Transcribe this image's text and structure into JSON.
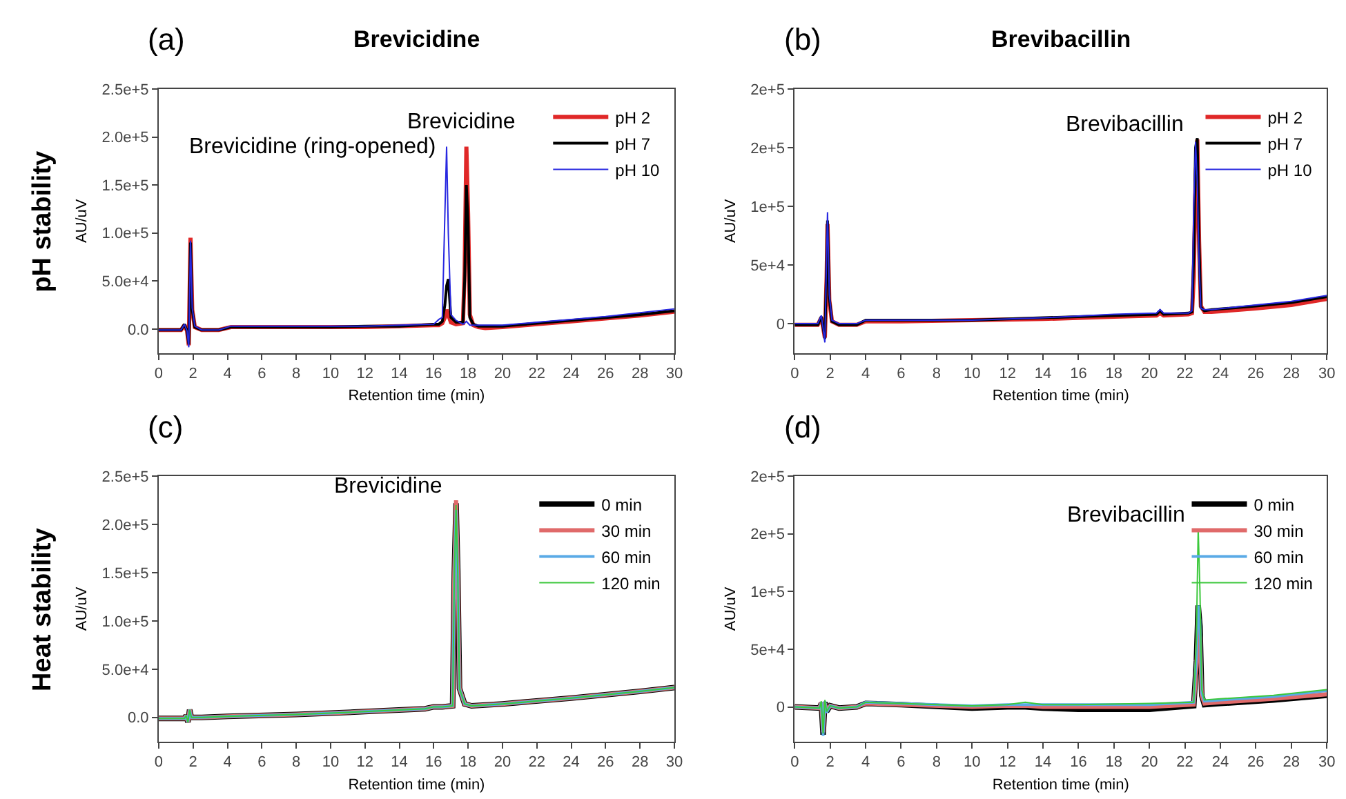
{
  "chart_data": [
    {
      "type": "line",
      "title": "Brevicidine",
      "xlabel": "Retention time (min)",
      "ylabel": "AU/uV",
      "xlim": [
        0,
        30
      ],
      "xticks": [
        0,
        2,
        4,
        6,
        8,
        10,
        12,
        14,
        16,
        18,
        20,
        22,
        24,
        26,
        28,
        30
      ],
      "ylim": [
        -25000,
        250000
      ],
      "yticks": [
        {
          "value": 0,
          "label": "0.0"
        },
        {
          "value": 50000,
          "label": "5.0e+4"
        },
        {
          "value": 100000,
          "label": "1.0e+5"
        },
        {
          "value": 150000,
          "label": "1.5e+5"
        },
        {
          "value": 200000,
          "label": "2.0e+5"
        },
        {
          "value": 250000,
          "label": "2.5e+5"
        }
      ],
      "legend": "top right",
      "annotations": [
        "(a)",
        "pH stability",
        {
          "text": "Brevicidine (ring-opened)",
          "x": 16.75,
          "y": 190000
        },
        {
          "text": "Brevicidine",
          "x": 17.9,
          "y": 190000
        }
      ],
      "series": [
        {
          "name": "pH 2",
          "color": "#e02828",
          "x": [
            0,
            1.3,
            1.5,
            1.65,
            1.75,
            1.85,
            1.95,
            2.1,
            2.5,
            3.5,
            4.2,
            6,
            8,
            10,
            12,
            14,
            16,
            16.3,
            16.5,
            16.65,
            16.75,
            16.85,
            17,
            17.3,
            17.7,
            17.8,
            17.9,
            18.0,
            18.1,
            18.3,
            18.6,
            19,
            20,
            22,
            24,
            26,
            28,
            30
          ],
          "values": [
            -1000,
            -1000,
            4000,
            -2000,
            -17000,
            95000,
            20000,
            2000,
            -1000,
            -1000,
            2000,
            2000,
            2000,
            2000,
            2000,
            3000,
            4000,
            4000,
            6000,
            12000,
            20000,
            15000,
            7000,
            5000,
            6000,
            60000,
            190000,
            120000,
            15000,
            4000,
            2000,
            1000,
            2000,
            5000,
            8000,
            11000,
            14000,
            18000
          ]
        },
        {
          "name": "pH 7",
          "color": "#000000",
          "x": [
            0,
            1.3,
            1.5,
            1.65,
            1.75,
            1.85,
            1.95,
            2.1,
            2.5,
            3.5,
            4.2,
            6,
            8,
            10,
            12,
            14,
            16,
            16.3,
            16.5,
            16.65,
            16.75,
            16.85,
            17,
            17.3,
            17.7,
            17.8,
            17.9,
            18.0,
            18.1,
            18.3,
            18.6,
            19,
            20,
            22,
            24,
            26,
            28,
            30
          ],
          "values": [
            -1000,
            -1000,
            5000,
            -2000,
            -16000,
            90000,
            20000,
            2000,
            -1000,
            -1000,
            2000,
            2000,
            2000,
            2000,
            3000,
            3000,
            5000,
            5000,
            8000,
            25000,
            45000,
            52000,
            12000,
            7000,
            7000,
            50000,
            150000,
            110000,
            12000,
            5000,
            3000,
            3000,
            3000,
            6000,
            9000,
            12000,
            15000,
            19000
          ]
        },
        {
          "name": "pH 10",
          "color": "#2828e0",
          "x": [
            0,
            1.3,
            1.5,
            1.65,
            1.75,
            1.85,
            1.95,
            2.1,
            2.5,
            3.5,
            4.2,
            6,
            8,
            10,
            12,
            14,
            16,
            16.3,
            16.5,
            16.65,
            16.75,
            16.85,
            17,
            17.3,
            17.7,
            17.8,
            17.9,
            18.0,
            18.1,
            18.3,
            18.6,
            19,
            20,
            22,
            24,
            26,
            28,
            30
          ],
          "values": [
            -1000,
            -1000,
            5000,
            -2000,
            -19000,
            92000,
            22000,
            3000,
            -1000,
            -1000,
            3000,
            3000,
            3000,
            3000,
            3000,
            4000,
            5000,
            10000,
            12000,
            120000,
            190000,
            100000,
            15000,
            9000,
            5000,
            6000,
            8000,
            6000,
            4000,
            4000,
            4000,
            4000,
            4000,
            7000,
            10000,
            13000,
            17000,
            21000
          ]
        }
      ]
    },
    {
      "type": "line",
      "title": "Brevibacillin",
      "xlabel": "Retention time (min)",
      "ylabel": "AU/uV",
      "xlim": [
        0,
        30
      ],
      "xticks": [
        0,
        2,
        4,
        6,
        8,
        10,
        12,
        14,
        16,
        18,
        20,
        22,
        24,
        26,
        28,
        30
      ],
      "ylim": [
        -25000,
        200000
      ],
      "yticks": [
        0,
        {
          "value": 50000,
          "label": "5e+4"
        },
        {
          "value": 100000,
          "label": "1e+5"
        },
        {
          "value": 150000,
          "label": "2e+5"
        },
        {
          "value": 200000,
          "label": "2e+5"
        }
      ],
      "legend": "top right",
      "annotations": [
        "(b)",
        {
          "text": "Brevibacillin",
          "x": 22.65,
          "y": 158000
        }
      ],
      "series": [
        {
          "name": "pH 2",
          "color": "#e02828",
          "x": [
            0,
            1.3,
            1.5,
            1.6,
            1.7,
            1.8,
            1.85,
            1.95,
            2.1,
            2.5,
            3.5,
            4,
            6,
            10,
            14,
            18,
            20.4,
            20.6,
            20.8,
            22.2,
            22.4,
            22.5,
            22.6,
            22.7,
            22.8,
            22.9,
            23.1,
            23.5,
            26,
            28,
            30
          ],
          "values": [
            -1000,
            -1000,
            5000,
            -3000,
            -12000,
            40000,
            85000,
            20000,
            2000,
            -1000,
            -1000,
            2000,
            2000,
            3000,
            4000,
            6000,
            7000,
            9000,
            7000,
            8000,
            9000,
            40000,
            120000,
            157000,
            70000,
            15000,
            10000,
            10000,
            13000,
            16000,
            21000
          ]
        },
        {
          "name": "pH 7",
          "color": "#000000",
          "x": [
            0,
            1.3,
            1.5,
            1.6,
            1.7,
            1.8,
            1.85,
            1.95,
            2.1,
            2.5,
            3.5,
            4,
            6,
            10,
            14,
            18,
            20.4,
            20.6,
            20.8,
            22.2,
            22.4,
            22.5,
            22.6,
            22.7,
            22.8,
            22.9,
            23.1,
            23.5,
            26,
            28,
            30
          ],
          "values": [
            -1000,
            -1000,
            6000,
            -3000,
            -13000,
            50000,
            88000,
            22000,
            2000,
            -1000,
            -1000,
            3000,
            3000,
            3000,
            5000,
            7000,
            8000,
            11000,
            8000,
            9000,
            10000,
            60000,
            150000,
            158000,
            65000,
            14000,
            11000,
            12000,
            15000,
            18000,
            23000
          ]
        },
        {
          "name": "pH 10",
          "color": "#2828e0",
          "x": [
            0,
            1.3,
            1.5,
            1.6,
            1.7,
            1.8,
            1.85,
            1.95,
            2.1,
            2.5,
            3.5,
            4,
            6,
            10,
            14,
            18,
            20.4,
            20.6,
            20.8,
            22.2,
            22.4,
            22.5,
            22.6,
            22.7,
            22.8,
            22.9,
            23.1,
            23.5,
            26,
            28,
            30
          ],
          "values": [
            0,
            0,
            7000,
            -4000,
            -16000,
            60000,
            95000,
            25000,
            3000,
            0,
            0,
            3000,
            3000,
            3000,
            5000,
            8000,
            9000,
            12000,
            9000,
            9000,
            11000,
            100000,
            155000,
            120000,
            50000,
            13000,
            12000,
            12000,
            16000,
            19000,
            24000
          ]
        }
      ]
    },
    {
      "type": "line",
      "xlabel": "Retention time (min)",
      "ylabel": "AU/uV",
      "xlim": [
        0,
        30
      ],
      "xticks": [
        0,
        2,
        4,
        6,
        8,
        10,
        12,
        14,
        16,
        18,
        20,
        22,
        24,
        26,
        28,
        30
      ],
      "ylim": [
        -25000,
        250000
      ],
      "yticks": [
        {
          "value": 0,
          "label": "0.0"
        },
        {
          "value": 50000,
          "label": "5.0e+4"
        },
        {
          "value": 100000,
          "label": "1.0e+5"
        },
        {
          "value": 150000,
          "label": "1.5e+5"
        },
        {
          "value": 200000,
          "label": "2.0e+5"
        },
        {
          "value": 250000,
          "label": "2.5e+5"
        }
      ],
      "legend": "top right",
      "annotations": [
        "(c)",
        "Heat stability",
        {
          "text": "Brevicidine",
          "x": 17.3,
          "y": 225000
        }
      ],
      "series": [
        {
          "name": "0 min",
          "color": "#000000",
          "x": [
            0,
            1.5,
            1.6,
            1.7,
            1.8,
            1.9,
            2.5,
            4,
            8,
            12,
            15.5,
            16,
            16.5,
            17.1,
            17.2,
            17.3,
            17.4,
            17.5,
            17.8,
            18.2,
            20,
            24,
            28,
            30
          ],
          "values": [
            -1000,
            -1000,
            2000,
            -5000,
            8000,
            0,
            0,
            1000,
            3000,
            6000,
            9000,
            11000,
            11000,
            12000,
            150000,
            222000,
            150000,
            30000,
            14000,
            12000,
            14000,
            20000,
            27000,
            31000
          ]
        },
        {
          "name": "30 min",
          "color": "#e06a6a",
          "x": [
            0,
            1.5,
            1.6,
            1.7,
            1.8,
            1.9,
            2.5,
            4,
            8,
            12,
            15.5,
            16,
            16.5,
            17.1,
            17.2,
            17.3,
            17.4,
            17.5,
            17.8,
            18.2,
            20,
            24,
            28,
            30
          ],
          "values": [
            -1000,
            -1000,
            2000,
            -5000,
            8000,
            0,
            0,
            1000,
            3000,
            6000,
            9000,
            11000,
            11000,
            12000,
            150000,
            225000,
            150000,
            30000,
            14000,
            12000,
            14000,
            20000,
            27000,
            31000
          ]
        },
        {
          "name": "60 min",
          "color": "#5aaae6",
          "x": [
            0,
            1.5,
            1.6,
            1.7,
            1.8,
            1.9,
            2.5,
            4,
            8,
            12,
            15.5,
            16,
            16.5,
            17.1,
            17.2,
            17.3,
            17.4,
            17.5,
            17.8,
            18.2,
            20,
            24,
            28,
            30
          ],
          "values": [
            -1000,
            -1000,
            2000,
            -5000,
            8000,
            0,
            0,
            1000,
            3000,
            6000,
            9000,
            11000,
            11000,
            12000,
            140000,
            215000,
            145000,
            30000,
            14000,
            12000,
            14000,
            20000,
            27000,
            31000
          ]
        },
        {
          "name": "120 min",
          "color": "#3cc83c",
          "x": [
            0,
            1.5,
            1.6,
            1.7,
            1.8,
            1.9,
            2.5,
            4,
            8,
            12,
            15.5,
            16,
            16.5,
            17.1,
            17.2,
            17.3,
            17.4,
            17.5,
            17.8,
            18.2,
            20,
            24,
            28,
            30
          ],
          "values": [
            -1000,
            -1000,
            2000,
            -5000,
            8000,
            0,
            0,
            1000,
            3000,
            6000,
            9000,
            11000,
            11000,
            12000,
            145000,
            220000,
            148000,
            30000,
            14000,
            12000,
            14000,
            20000,
            27000,
            31000
          ]
        }
      ]
    },
    {
      "type": "line",
      "xlabel": "Retention time (min)",
      "ylabel": "AU/uV",
      "xlim": [
        0,
        30
      ],
      "xticks": [
        0,
        2,
        4,
        6,
        8,
        10,
        12,
        14,
        16,
        18,
        20,
        22,
        24,
        26,
        28,
        30
      ],
      "ylim": [
        -30000,
        200000
      ],
      "yticks": [
        0,
        {
          "value": 50000,
          "label": "5e+4"
        },
        {
          "value": 100000,
          "label": "1e+5"
        },
        {
          "value": 150000,
          "label": "2e+5"
        },
        {
          "value": 200000,
          "label": "2e+5"
        }
      ],
      "legend": "top right",
      "annotations": [
        "(d)",
        {
          "text": "Brevibacillin",
          "x": 22.75,
          "y": 154000
        }
      ],
      "series": [
        {
          "name": "0 min",
          "color": "#000000",
          "x": [
            0,
            1.4,
            1.5,
            1.6,
            1.7,
            1.8,
            2,
            2.5,
            3.5,
            4,
            6,
            10,
            12,
            13,
            14,
            16,
            20,
            22.5,
            22.65,
            22.75,
            22.85,
            22.95,
            23.1,
            24,
            27,
            30
          ],
          "values": [
            0,
            -1000,
            3000,
            -24000,
            4000,
            -4000,
            1000,
            -1000,
            0,
            3000,
            2000,
            -1000,
            0,
            0,
            -1000,
            -2000,
            -2000,
            1000,
            40000,
            88000,
            70000,
            10000,
            2000,
            3000,
            6000,
            10000
          ]
        },
        {
          "name": "30 min",
          "color": "#e06a6a",
          "x": [
            0,
            1.4,
            1.5,
            1.6,
            1.7,
            1.8,
            2,
            2.5,
            3.5,
            4,
            6,
            10,
            12,
            13,
            14,
            16,
            20,
            22.5,
            22.65,
            22.75,
            22.85,
            22.95,
            23.1,
            24,
            27,
            30
          ],
          "values": [
            0,
            -1000,
            4000,
            -22000,
            3000,
            -3000,
            1000,
            -1000,
            0,
            3000,
            2000,
            0,
            1000,
            1000,
            0,
            0,
            0,
            2000,
            35000,
            75000,
            60000,
            10000,
            3000,
            4000,
            7000,
            11000
          ]
        },
        {
          "name": "60 min",
          "color": "#5aaae6",
          "x": [
            0,
            1.4,
            1.5,
            1.6,
            1.7,
            1.8,
            2,
            2.5,
            3.5,
            4,
            6,
            10,
            12,
            13,
            14,
            16,
            20,
            22.5,
            22.65,
            22.75,
            22.85,
            22.95,
            23.1,
            24,
            27,
            30
          ],
          "values": [
            0,
            -1000,
            4000,
            -25000,
            5000,
            -5000,
            1000,
            -1000,
            0,
            4000,
            3000,
            1000,
            2000,
            2000,
            2000,
            2000,
            2000,
            4000,
            45000,
            88000,
            75000,
            12000,
            5000,
            6000,
            9000,
            14000
          ]
        },
        {
          "name": "120 min",
          "color": "#3cc83c",
          "x": [
            0,
            1.4,
            1.5,
            1.6,
            1.7,
            1.8,
            2,
            2.5,
            3.5,
            4,
            6,
            10,
            12,
            13,
            14,
            16,
            20,
            22.5,
            22.65,
            22.75,
            22.85,
            22.95,
            23.1,
            24,
            27,
            30
          ],
          "values": [
            0,
            -1000,
            5000,
            -23000,
            6000,
            -4000,
            1000,
            -1000,
            0,
            4000,
            3000,
            1000,
            2000,
            4000,
            2000,
            2000,
            3000,
            4000,
            60000,
            154000,
            100000,
            15000,
            6000,
            7000,
            10000,
            15000
          ]
        }
      ]
    }
  ]
}
